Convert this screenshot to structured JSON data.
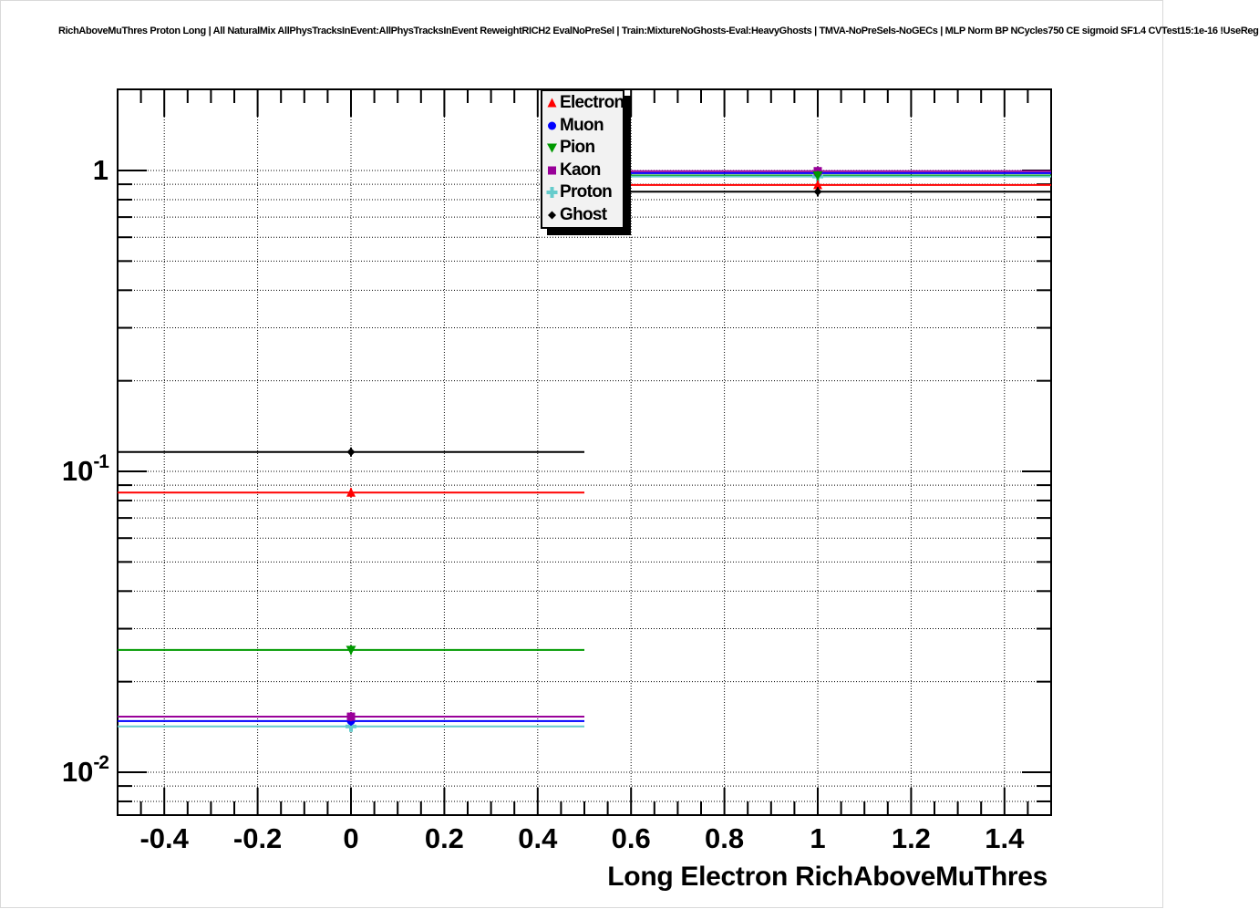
{
  "title": "RichAboveMuThres Proton Long | All NaturalMix AllPhysTracksInEvent:AllPhysTracksInEvent ReweightRICH2 EvalNoPreSel | Train:MixtureNoGhosts-Eval:HeavyGhosts | TMVA-NoPreSels-NoGECs | MLP Norm BP NCycles750 CE sigmoid SF1.4 CVTest15:1e-16 !UseReg",
  "colors": {
    "background": "#ffffff",
    "frame": "#000000",
    "grid": "#000000",
    "legend_background": "#f2f2f2"
  },
  "chart_data": {
    "type": "line",
    "title": "",
    "xlabel": "Long Electron RichAboveMuThres",
    "ylabel": "",
    "xlim": [
      -0.5,
      1.5
    ],
    "ylim": [
      0.0072,
      1.86
    ],
    "yscale": "log",
    "grid": "dotted",
    "legend_position": "top-center",
    "x_ticks": [
      {
        "value": -0.4,
        "label": "-0.4"
      },
      {
        "value": -0.2,
        "label": "-0.2"
      },
      {
        "value": 0,
        "label": "0"
      },
      {
        "value": 0.2,
        "label": "0.2"
      },
      {
        "value": 0.4,
        "label": "0.4"
      },
      {
        "value": 0.6,
        "label": "0.6"
      },
      {
        "value": 0.8,
        "label": "0.8"
      },
      {
        "value": 1,
        "label": "1"
      },
      {
        "value": 1.2,
        "label": "1.2"
      },
      {
        "value": 1.4,
        "label": "1.4"
      }
    ],
    "y_ticks": [
      {
        "value": 1,
        "mantissa": "1",
        "exponent": ""
      },
      {
        "value": 0.1,
        "mantissa": "10",
        "exponent": "-1"
      },
      {
        "value": 0.01,
        "mantissa": "10",
        "exponent": "-2"
      }
    ],
    "bins": [
      {
        "low": -0.5,
        "high": 0.5,
        "center": 0
      },
      {
        "low": 0.5,
        "high": 1.5,
        "center": 1
      }
    ],
    "series": [
      {
        "name": "Electron",
        "color": "#ff0000",
        "marker": "triangle-up",
        "values": [
          0.085,
          0.895
        ]
      },
      {
        "name": "Muon",
        "color": "#0000ff",
        "marker": "circle",
        "values": [
          0.0148,
          0.98
        ]
      },
      {
        "name": "Pion",
        "color": "#009900",
        "marker": "triangle-down",
        "values": [
          0.0255,
          0.962
        ]
      },
      {
        "name": "Kaon",
        "color": "#990099",
        "marker": "square",
        "values": [
          0.0153,
          0.995
        ]
      },
      {
        "name": "Proton",
        "color": "#66cccc",
        "marker": "cross",
        "values": [
          0.0142,
          0.955
        ]
      },
      {
        "name": "Ghost",
        "color": "#000000",
        "marker": "diamond",
        "values": [
          0.116,
          0.85
        ]
      }
    ]
  }
}
